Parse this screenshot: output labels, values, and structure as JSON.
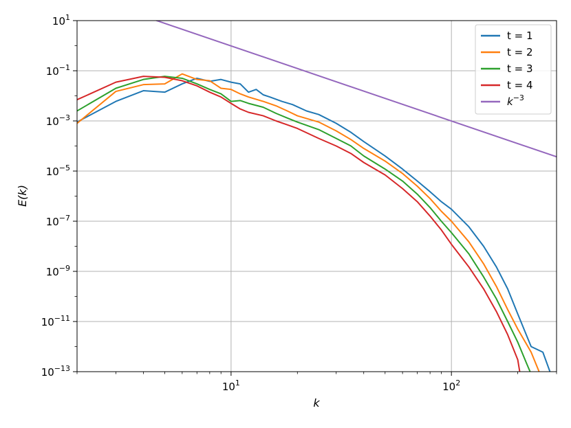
{
  "chart_data": {
    "type": "line",
    "xlabel": "k",
    "ylabel": "E(k)",
    "x_scale": "log",
    "y_scale": "log",
    "xlim": [
      2,
      300
    ],
    "ylim": [
      1e-13,
      10
    ],
    "grid": true,
    "legend_position": "top-right",
    "x_ticks": [
      {
        "value": 10,
        "base": "10",
        "exp": "1"
      },
      {
        "value": 100,
        "base": "10",
        "exp": "2"
      }
    ],
    "y_ticks": [
      {
        "value": 10,
        "base": "10",
        "exp": "1"
      },
      {
        "value": 0.1,
        "base": "10",
        "exp": "−1"
      },
      {
        "value": 0.001,
        "base": "10",
        "exp": "−3"
      },
      {
        "value": 1e-05,
        "base": "10",
        "exp": "−5"
      },
      {
        "value": 1e-07,
        "base": "10",
        "exp": "−7"
      },
      {
        "value": 1e-09,
        "base": "10",
        "exp": "−9"
      },
      {
        "value": 1e-11,
        "base": "10",
        "exp": "−11"
      },
      {
        "value": 1e-13,
        "base": "10",
        "exp": "−13"
      }
    ],
    "series": [
      {
        "name": "t = 1",
        "color": "#1f77b4",
        "points": [
          [
            2,
            0.0009
          ],
          [
            3,
            0.006
          ],
          [
            4,
            0.016
          ],
          [
            5,
            0.014
          ],
          [
            6,
            0.03
          ],
          [
            7,
            0.05
          ],
          [
            8,
            0.038
          ],
          [
            9,
            0.045
          ],
          [
            10,
            0.035
          ],
          [
            11,
            0.03
          ],
          [
            12,
            0.014
          ],
          [
            13,
            0.018
          ],
          [
            14,
            0.011
          ],
          [
            15,
            0.009
          ],
          [
            17,
            0.006
          ],
          [
            19,
            0.0045
          ],
          [
            22,
            0.0025
          ],
          [
            25,
            0.0018
          ],
          [
            30,
            0.0008
          ],
          [
            35,
            0.00035
          ],
          [
            40,
            0.00015
          ],
          [
            50,
            4e-05
          ],
          [
            60,
            1.2e-05
          ],
          [
            70,
            4e-06
          ],
          [
            80,
            1.5e-06
          ],
          [
            90,
            6e-07
          ],
          [
            100,
            3e-07
          ],
          [
            120,
            6e-08
          ],
          [
            140,
            1e-08
          ],
          [
            160,
            1.5e-09
          ],
          [
            180,
            2e-10
          ],
          [
            200,
            2e-11
          ],
          [
            230,
            1e-12
          ],
          [
            260,
            6e-13
          ],
          [
            280,
            1e-13
          ],
          [
            285,
            8e-14
          ]
        ]
      },
      {
        "name": "t = 2",
        "color": "#ff7f0e",
        "points": [
          [
            2,
            0.0008
          ],
          [
            3,
            0.015
          ],
          [
            4,
            0.028
          ],
          [
            5,
            0.03
          ],
          [
            6,
            0.075
          ],
          [
            7,
            0.045
          ],
          [
            8,
            0.04
          ],
          [
            9,
            0.02
          ],
          [
            10,
            0.018
          ],
          [
            11,
            0.012
          ],
          [
            12,
            0.009
          ],
          [
            14,
            0.006
          ],
          [
            16,
            0.004
          ],
          [
            18,
            0.0025
          ],
          [
            20,
            0.0016
          ],
          [
            25,
            0.0009
          ],
          [
            30,
            0.0004
          ],
          [
            35,
            0.00018
          ],
          [
            40,
            8e-05
          ],
          [
            50,
            2.5e-05
          ],
          [
            60,
            8e-06
          ],
          [
            70,
            2.5e-06
          ],
          [
            80,
            8e-07
          ],
          [
            90,
            2.5e-07
          ],
          [
            100,
            1e-07
          ],
          [
            120,
            1.5e-08
          ],
          [
            140,
            2e-09
          ],
          [
            160,
            2.5e-10
          ],
          [
            180,
            3e-11
          ],
          [
            200,
            5e-12
          ],
          [
            230,
            6e-13
          ],
          [
            250,
            1e-13
          ],
          [
            255,
            8e-14
          ]
        ]
      },
      {
        "name": "t = 3",
        "color": "#2ca02c",
        "points": [
          [
            2,
            0.0025
          ],
          [
            3,
            0.02
          ],
          [
            4,
            0.045
          ],
          [
            5,
            0.06
          ],
          [
            6,
            0.05
          ],
          [
            7,
            0.03
          ],
          [
            8,
            0.018
          ],
          [
            9,
            0.012
          ],
          [
            10,
            0.006
          ],
          [
            11,
            0.0065
          ],
          [
            12,
            0.005
          ],
          [
            14,
            0.0035
          ],
          [
            16,
            0.002
          ],
          [
            18,
            0.0013
          ],
          [
            20,
            0.0009
          ],
          [
            25,
            0.00045
          ],
          [
            30,
            0.0002
          ],
          [
            35,
            0.0001
          ],
          [
            40,
            4e-05
          ],
          [
            50,
            1.2e-05
          ],
          [
            60,
            4e-06
          ],
          [
            70,
            1.2e-06
          ],
          [
            80,
            3.5e-07
          ],
          [
            90,
            1e-07
          ],
          [
            100,
            3.5e-08
          ],
          [
            120,
            5e-09
          ],
          [
            140,
            6e-10
          ],
          [
            160,
            8e-11
          ],
          [
            180,
            1e-11
          ],
          [
            200,
            1.5e-12
          ],
          [
            220,
            2e-13
          ],
          [
            230,
            8e-14
          ]
        ]
      },
      {
        "name": "t = 4",
        "color": "#d62728",
        "points": [
          [
            2,
            0.007
          ],
          [
            3,
            0.035
          ],
          [
            4,
            0.06
          ],
          [
            5,
            0.055
          ],
          [
            6,
            0.04
          ],
          [
            7,
            0.025
          ],
          [
            8,
            0.014
          ],
          [
            9,
            0.009
          ],
          [
            10,
            0.005
          ],
          [
            11,
            0.003
          ],
          [
            12,
            0.0022
          ],
          [
            14,
            0.0016
          ],
          [
            16,
            0.001
          ],
          [
            18,
            0.0007
          ],
          [
            20,
            0.0005
          ],
          [
            25,
            0.0002
          ],
          [
            30,
            0.0001
          ],
          [
            35,
            5e-05
          ],
          [
            40,
            2.2e-05
          ],
          [
            50,
            7e-06
          ],
          [
            60,
            2e-06
          ],
          [
            70,
            6e-07
          ],
          [
            80,
            1.6e-07
          ],
          [
            90,
            4.5e-08
          ],
          [
            100,
            1.2e-08
          ],
          [
            120,
            1.5e-09
          ],
          [
            140,
            2e-10
          ],
          [
            160,
            2.5e-11
          ],
          [
            180,
            3e-12
          ],
          [
            200,
            3e-13
          ],
          [
            205,
            8e-14
          ]
        ]
      },
      {
        "name_base": "k",
        "name_exp": "−3",
        "color": "#9467bd",
        "points": [
          [
            4.6,
            10
          ],
          [
            300,
            3.7037e-05
          ]
        ]
      }
    ]
  }
}
